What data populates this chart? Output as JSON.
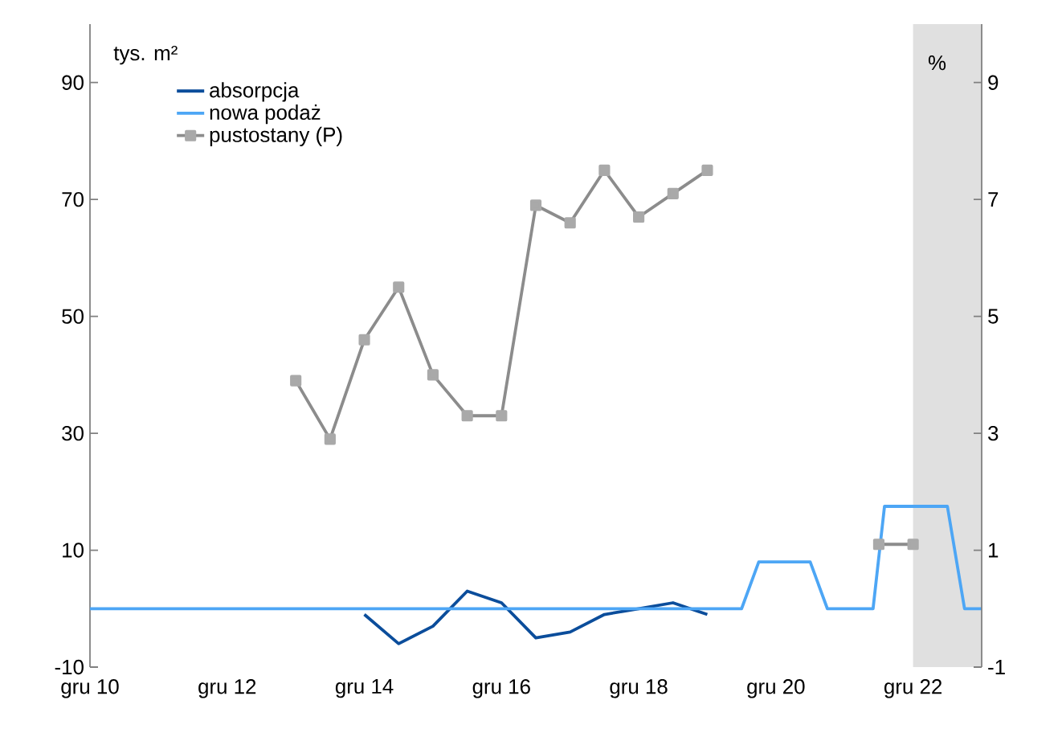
{
  "chart_data": {
    "type": "line",
    "ylabel": "tys. m²",
    "y2label": "%",
    "xlim": [
      "2010-12",
      "2023-12"
    ],
    "xticks": [
      {
        "value": "2010-12",
        "label": "gru 10"
      },
      {
        "value": "2012-12",
        "label": "gru 12"
      },
      {
        "value": "2014-12",
        "label": "gru 14"
      },
      {
        "value": "2016-12",
        "label": "gru 16"
      },
      {
        "value": "2018-12",
        "label": "gru 18"
      },
      {
        "value": "2020-12",
        "label": "gru 20"
      },
      {
        "value": "2022-12",
        "label": "gru 22"
      }
    ],
    "ylim": [
      -10,
      100
    ],
    "yticks": [
      -10,
      10,
      30,
      50,
      70,
      90
    ],
    "y2lim": [
      -1,
      10
    ],
    "y2ticks": [
      -1,
      1,
      3,
      5,
      7,
      9
    ],
    "legend": "top left",
    "bands": [
      {
        "axis": "x",
        "from": "2022-12",
        "to": "2023-12",
        "color": "#e0e0e0"
      }
    ],
    "series": [
      {
        "name": "absorpcja",
        "color": "#0b4d9b",
        "x": [
          "2014-12",
          "2015-06",
          "2015-12",
          "2016-06",
          "2016-12",
          "2017-06",
          "2017-12",
          "2018-06",
          "2018-12",
          "2019-06",
          "2019-12"
        ],
        "values": [
          -1,
          -6,
          -3,
          3,
          1,
          -5,
          -4,
          -1,
          0,
          1,
          -1
        ]
      },
      {
        "name": "nowa podaż",
        "color": "#4da6f5",
        "x": [
          "2010-12",
          "2020-06",
          "2020-09",
          "2021-06",
          "2021-09",
          "2022-05",
          "2022-07",
          "2023-06",
          "2023-09",
          "2023-12"
        ],
        "values": [
          0,
          0,
          8,
          8,
          0,
          0,
          17.5,
          17.5,
          0,
          0
        ]
      },
      {
        "name": "pustostany (P)",
        "color": "#8c8c8c",
        "axis": "y2",
        "marker": "square",
        "x": [
          "2013-12",
          "2014-06",
          "2014-12",
          "2015-06",
          "2015-12",
          "2016-06",
          "2016-12",
          "2017-06",
          "2017-12",
          "2018-06",
          "2018-12",
          "2019-06",
          "2019-12",
          "2020-12",
          "2022-06",
          "2022-12"
        ],
        "values": [
          3.9,
          2.9,
          4.6,
          5.5,
          4.0,
          3.3,
          3.3,
          6.9,
          6.6,
          7.5,
          6.7,
          7.1,
          7.5,
          null,
          1.1,
          1.1
        ]
      }
    ]
  }
}
